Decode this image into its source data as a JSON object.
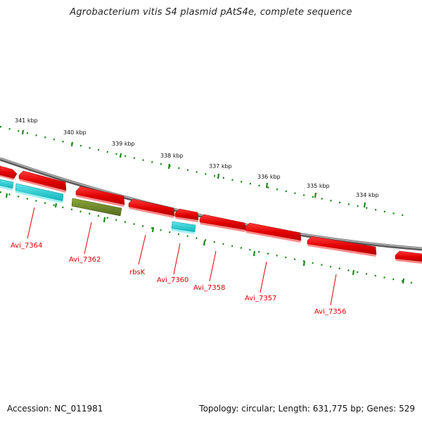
{
  "title": "Agrobacterium vitis S4 plasmid pAtS4e, complete sequence",
  "footer": {
    "accession": "Accession: NC_011981",
    "summary": "Topology: circular; Length: 631,775 bp; Genes: 529"
  },
  "ruler_labels": [
    "341 kbp",
    "340 kbp",
    "339 kbp",
    "338 kbp",
    "337 kbp",
    "336 kbp",
    "335 kbp",
    "334 kbp"
  ],
  "gene_labels": [
    "Avi_7364",
    "Avi_7362",
    "rbsK",
    "Avi_7360",
    "Avi_7358",
    "Avi_7357",
    "Avi_7356"
  ],
  "colors": {
    "backbone": "#8c8c8c",
    "cds_forward": "#e00000",
    "cds_reverse": "#19c6cc",
    "other_feature": "#6b8e23",
    "ruler_ticks": "#1a8a1a",
    "label": "#e00000"
  }
}
